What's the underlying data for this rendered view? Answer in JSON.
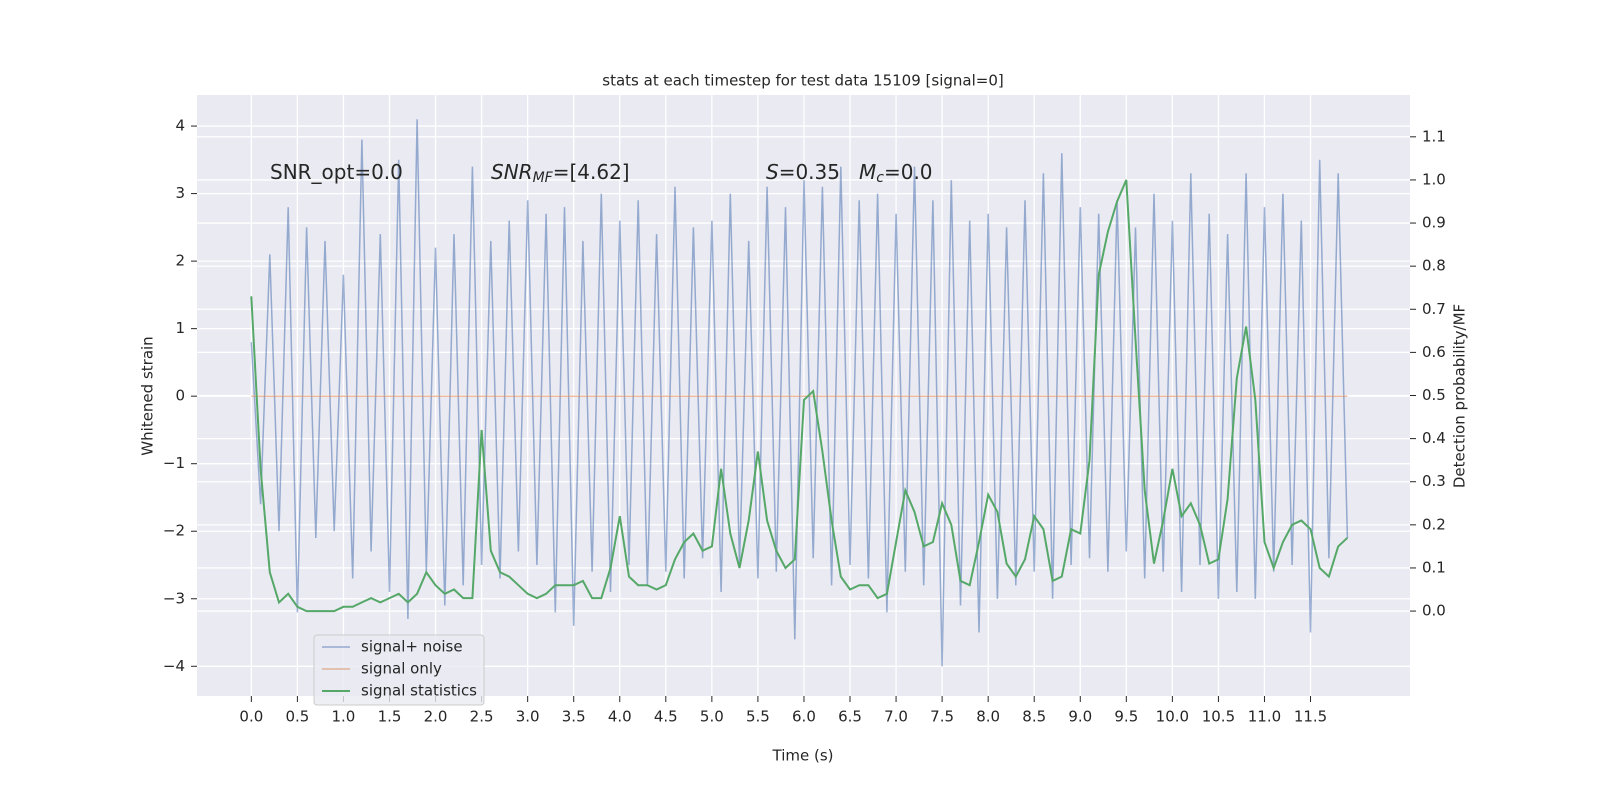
{
  "chart_data": {
    "type": "line",
    "title": "stats at each timestep for test data 15109 [signal=0]",
    "xlabel": "Time (s)",
    "ylabel": "Whitened strain",
    "y2label": "Detection probability/MF",
    "annotations": [
      {
        "base": "SNR_opt=0.0"
      },
      {
        "base": "SNR",
        "sub": "MF",
        "rest": "=[4.62]"
      },
      {
        "base": "S",
        "rest": "=0.35"
      },
      {
        "base": "M",
        "sub": "c",
        "rest": "=0.0"
      }
    ],
    "x": [
      0,
      0.1,
      0.2,
      0.3,
      0.4,
      0.5,
      0.6,
      0.7,
      0.8,
      0.9,
      1,
      1.1,
      1.2,
      1.3,
      1.4,
      1.5,
      1.6,
      1.7,
      1.8,
      1.9,
      2,
      2.1,
      2.2,
      2.3,
      2.4,
      2.5,
      2.6,
      2.7,
      2.8,
      2.9,
      3,
      3.1,
      3.2,
      3.3,
      3.4,
      3.5,
      3.6,
      3.7,
      3.8,
      3.9,
      4,
      4.1,
      4.2,
      4.3,
      4.4,
      4.5,
      4.6,
      4.7,
      4.8,
      4.9,
      5,
      5.1,
      5.2,
      5.3,
      5.4,
      5.5,
      5.6,
      5.7,
      5.8,
      5.9,
      6,
      6.1,
      6.2,
      6.3,
      6.4,
      6.5,
      6.6,
      6.7,
      6.8,
      6.9,
      7,
      7.1,
      7.2,
      7.3,
      7.4,
      7.5,
      7.6,
      7.7,
      7.8,
      7.9,
      8,
      8.1,
      8.2,
      8.3,
      8.4,
      8.5,
      8.6,
      8.7,
      8.8,
      8.9,
      9,
      9.1,
      9.2,
      9.3,
      9.4,
      9.5,
      9.6,
      9.7,
      9.8,
      9.9,
      10,
      10.1,
      10.2,
      10.3,
      10.4,
      10.5,
      10.6,
      10.7,
      10.8,
      10.9,
      11,
      11.1,
      11.2,
      11.3,
      11.4,
      11.5,
      11.6,
      11.7,
      11.8,
      11.9
    ],
    "series": [
      {
        "name": "signal+ noise",
        "color": "#4c72b0",
        "values": [
          0.8,
          -1.6,
          2.1,
          -2.0,
          2.8,
          -3.2,
          2.5,
          -2.1,
          2.3,
          -2.0,
          1.8,
          -2.7,
          3.8,
          -2.3,
          2.4,
          -2.9,
          3.5,
          -3.3,
          4.1,
          -2.6,
          2.2,
          -3.1,
          2.4,
          -2.8,
          3.4,
          -2.5,
          2.3,
          -2.7,
          2.6,
          -2.3,
          2.9,
          -2.5,
          2.7,
          -3.2,
          2.8,
          -3.4,
          2.3,
          -2.6,
          3.0,
          -2.9,
          2.6,
          -2.5,
          2.9,
          -2.8,
          2.4,
          -2.6,
          3.1,
          -2.7,
          2.5,
          -2.4,
          2.6,
          -2.9,
          3.0,
          -2.5,
          2.3,
          -2.7,
          3.1,
          -2.6,
          2.8,
          -3.6,
          3.2,
          -2.4,
          3.1,
          -2.8,
          3.4,
          -2.5,
          2.9,
          -2.7,
          3.0,
          -3.2,
          2.7,
          -2.6,
          3.4,
          -2.8,
          2.9,
          -4.0,
          3.2,
          -3.1,
          2.6,
          -3.5,
          2.7,
          -3.0,
          2.5,
          -2.8,
          2.9,
          -2.6,
          3.3,
          -3.0,
          3.6,
          -2.5,
          2.8,
          -2.4,
          2.7,
          -2.6,
          2.9,
          -2.3,
          2.5,
          -2.7,
          3.0,
          -2.6,
          2.6,
          -2.9,
          3.3,
          -2.5,
          2.7,
          -3.0,
          2.4,
          -2.9,
          3.3,
          -3.0,
          2.8,
          -2.6,
          3.0,
          -2.5,
          2.6,
          -3.5,
          3.5,
          -2.4,
          3.3,
          -2.1
        ]
      },
      {
        "name": "signal only",
        "color": "#dd8452",
        "values": [
          0,
          0,
          0,
          0,
          0,
          0,
          0,
          0,
          0,
          0,
          0,
          0,
          0,
          0,
          0,
          0,
          0,
          0,
          0,
          0,
          0,
          0,
          0,
          0,
          0,
          0,
          0,
          0,
          0,
          0,
          0,
          0,
          0,
          0,
          0,
          0,
          0,
          0,
          0,
          0,
          0,
          0,
          0,
          0,
          0,
          0,
          0,
          0,
          0,
          0,
          0,
          0,
          0,
          0,
          0,
          0,
          0,
          0,
          0,
          0,
          0,
          0,
          0,
          0,
          0,
          0,
          0,
          0,
          0,
          0,
          0,
          0,
          0,
          0,
          0,
          0,
          0,
          0,
          0,
          0,
          0,
          0,
          0,
          0,
          0,
          0,
          0,
          0,
          0,
          0,
          0,
          0,
          0,
          0,
          0,
          0,
          0,
          0,
          0,
          0,
          0,
          0,
          0,
          0,
          0,
          0,
          0,
          0,
          0,
          0,
          0,
          0,
          0,
          0,
          0,
          0,
          0,
          0,
          0,
          0
        ]
      },
      {
        "name": "signal statistics",
        "color": "#55a868",
        "axis": "y2",
        "values": [
          0.73,
          0.33,
          0.09,
          0.02,
          0.04,
          0.01,
          0,
          0,
          0,
          0,
          0.01,
          0.01,
          0.02,
          0.03,
          0.02,
          0.03,
          0.04,
          0.02,
          0.04,
          0.09,
          0.06,
          0.04,
          0.05,
          0.03,
          0.03,
          0.42,
          0.14,
          0.09,
          0.08,
          0.06,
          0.04,
          0.03,
          0.04,
          0.06,
          0.06,
          0.06,
          0.07,
          0.03,
          0.03,
          0.1,
          0.22,
          0.08,
          0.06,
          0.06,
          0.05,
          0.06,
          0.12,
          0.16,
          0.18,
          0.14,
          0.15,
          0.33,
          0.18,
          0.1,
          0.21,
          0.37,
          0.21,
          0.14,
          0.1,
          0.12,
          0.49,
          0.51,
          0.37,
          0.21,
          0.08,
          0.05,
          0.06,
          0.06,
          0.03,
          0.04,
          0.16,
          0.28,
          0.23,
          0.15,
          0.16,
          0.25,
          0.2,
          0.07,
          0.06,
          0.16,
          0.27,
          0.23,
          0.11,
          0.08,
          0.12,
          0.22,
          0.19,
          0.07,
          0.08,
          0.19,
          0.18,
          0.35,
          0.78,
          0.88,
          0.95,
          1.0,
          0.63,
          0.28,
          0.11,
          0.21,
          0.33,
          0.22,
          0.25,
          0.2,
          0.11,
          0.12,
          0.26,
          0.54,
          0.66,
          0.49,
          0.16,
          0.1,
          0.16,
          0.2,
          0.21,
          0.19,
          0.1,
          0.08,
          0.15,
          0.17
        ]
      }
    ],
    "xlim": [
      -0.59,
      12.58
    ],
    "ylim": [
      -4.44,
      4.46
    ],
    "y2lim": [
      -0.197,
      1.197
    ],
    "xticks": [
      {
        "value": 0,
        "label": "0.0"
      },
      0.5,
      {
        "value": 1,
        "label": "1.0"
      },
      1.5,
      {
        "value": 2,
        "label": "2.0"
      },
      2.5,
      {
        "value": 3,
        "label": "3.0"
      },
      3.5,
      {
        "value": 4,
        "label": "4.0"
      },
      4.5,
      {
        "value": 5,
        "label": "5.0"
      },
      5.5,
      {
        "value": 6,
        "label": "6.0"
      },
      6.5,
      {
        "value": 7,
        "label": "7.0"
      },
      7.5,
      {
        "value": 8,
        "label": "8.0"
      },
      8.5,
      {
        "value": 9,
        "label": "9.0"
      },
      9.5,
      {
        "value": 10,
        "label": "10.0"
      },
      10.5,
      {
        "value": 11,
        "label": "11.0"
      },
      11.5
    ],
    "yticks": [
      {
        "value": -4,
        "label": "−4"
      },
      {
        "value": -3,
        "label": "−3"
      },
      {
        "value": -2,
        "label": "−2"
      },
      {
        "value": -1,
        "label": "−1"
      },
      0,
      1,
      2,
      3,
      4
    ],
    "y2ticks": [
      {
        "value": 0,
        "label": "0.0"
      },
      0.1,
      0.2,
      0.3,
      0.4,
      0.5,
      0.6,
      0.7,
      0.8,
      0.9,
      {
        "value": 1,
        "label": "1.0"
      },
      1.1
    ],
    "grid": true,
    "legend": "lower left"
  }
}
